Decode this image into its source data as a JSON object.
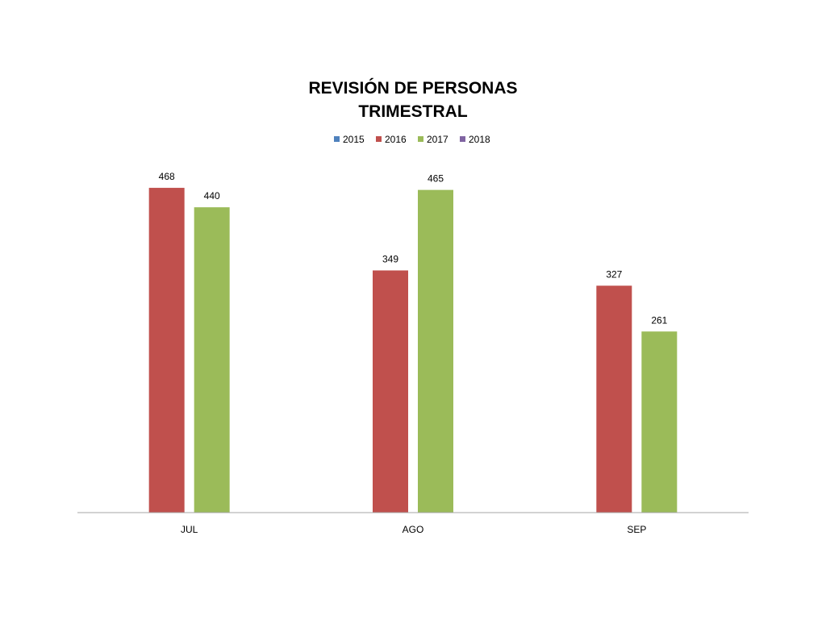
{
  "chart_data": {
    "type": "bar",
    "title_lines": [
      "REVISIÓN DE PERSONAS",
      "TRIMESTRAL"
    ],
    "categories": [
      "JUL",
      "AGO",
      "SEP"
    ],
    "legend": [
      {
        "name": "2015",
        "color": "#4F81BD"
      },
      {
        "name": "2016",
        "color": "#C0504D"
      },
      {
        "name": "2017",
        "color": "#9BBB59"
      },
      {
        "name": "2018",
        "color": "#8064A2"
      }
    ],
    "legend_placement": "top",
    "series": [
      {
        "name": "2016",
        "color": "#C0504D",
        "values": [
          468,
          349,
          327
        ]
      },
      {
        "name": "2017",
        "color": "#9BBB59",
        "values": [
          440,
          465,
          261
        ]
      }
    ],
    "ylim": [
      0,
      500
    ],
    "grid": false,
    "axis_color": "#A6A6A6"
  }
}
